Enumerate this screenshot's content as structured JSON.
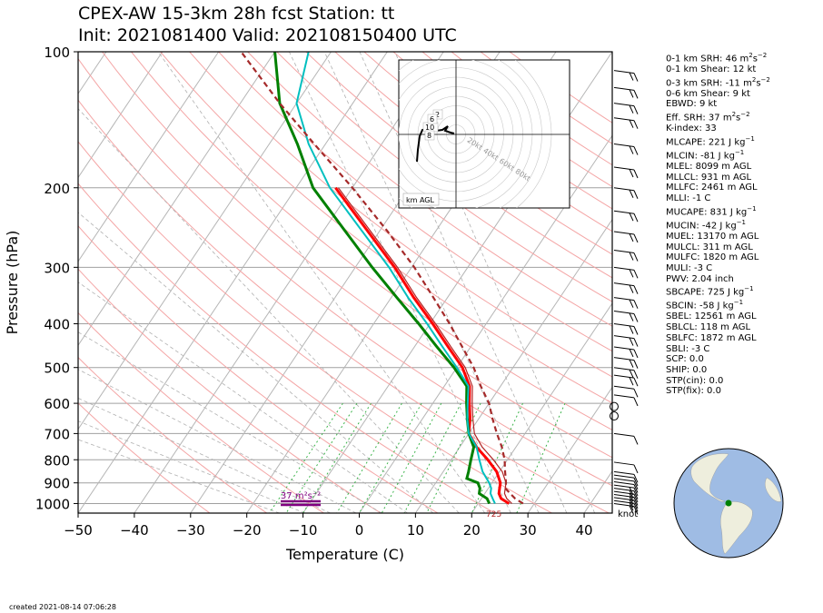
{
  "title_line1": "CPEX-AW 15-3km  28h fcst  Station: tt",
  "title_line2": "Init: 2021081400  Valid: 202108150400 UTC",
  "footer": "created 2021-08-14 07:06:28",
  "indices": [
    {
      "label": "0-1 km SRH: 46 m",
      "sup1": "2",
      "mid": "s",
      "sup2": "−2"
    },
    {
      "label": "0-1 km Shear: 12 kt"
    },
    {
      "label": "0-3 km SRH: -11 m",
      "sup1": "2",
      "mid": "s",
      "sup2": "−2"
    },
    {
      "label": "0-6 km Shear: 9 kt"
    },
    {
      "label": "EBWD: 9 kt"
    },
    {
      "label": "Eff. SRH: 37 m",
      "sup1": "2",
      "mid": "s",
      "sup2": "−2"
    },
    {
      "label": "K-index: 33"
    },
    {
      "label": "MLCAPE: 221 J kg",
      "sup1": "−1"
    },
    {
      "label": "MLCIN: -81 J kg",
      "sup1": "−1"
    },
    {
      "label": "MLEL: 8099 m AGL"
    },
    {
      "label": "MLLCL: 931 m AGL"
    },
    {
      "label": "MLLFC: 2461 m AGL"
    },
    {
      "label": "MLLI: -1 C"
    },
    {
      "label": "MUCAPE: 831 J kg",
      "sup1": "−1"
    },
    {
      "label": "MUCIN: -42 J kg",
      "sup1": "−1"
    },
    {
      "label": "MUEL: 13170 m AGL"
    },
    {
      "label": "MULCL: 311 m AGL"
    },
    {
      "label": "MULFC: 1820 m AGL"
    },
    {
      "label": "MULI: -3 C"
    },
    {
      "label": "PWV: 2.04 inch"
    },
    {
      "label": "SBCAPE: 725 J kg",
      "sup1": "−1"
    },
    {
      "label": "SBCIN: -58 J kg",
      "sup1": "−1"
    },
    {
      "label": "SBEL: 12561 m AGL"
    },
    {
      "label": "SBLCL: 118 m AGL"
    },
    {
      "label": "SBLFC: 1872 m AGL"
    },
    {
      "label": "SBLI: -3 C"
    },
    {
      "label": "SCP: 0.0"
    },
    {
      "label": "SHIP: 0.0"
    },
    {
      "label": "STP(cin): 0.0"
    },
    {
      "label": "STP(fix): 0.0"
    }
  ],
  "colors": {
    "temperature": "#ff0000",
    "dewpoint": "#008000",
    "wetbulb": "#00bfbf",
    "virtual_temperature": "#b22222",
    "parcel": "#a52a2a",
    "hodograph_label": "#800080",
    "grid": "#808080",
    "dry_adiabat": "#f4a5a5",
    "moist_adiabat": "#b0b0b0",
    "mixing_ratio": "#3cb44b",
    "ocean": "#9fbce4",
    "land": "#eeeedd"
  },
  "chart_data": {
    "type": "line",
    "subtype": "skew-T log-P",
    "xlabel": "Temperature (C)",
    "ylabel": "Pressure (hPa)",
    "x_ticks": [
      -50,
      -40,
      -30,
      -20,
      -10,
      0,
      10,
      20,
      30,
      40
    ],
    "y_ticks": [
      100,
      200,
      300,
      400,
      500,
      600,
      700,
      800,
      900,
      1000
    ],
    "xlim": [
      -50,
      45
    ],
    "ylim": [
      1050,
      100
    ],
    "y_scale": "log",
    "grid": true,
    "series": [
      {
        "key": "temperature",
        "points": [
          [
            1000,
            25.5
          ],
          [
            975,
            23.5
          ],
          [
            950,
            22.5
          ],
          [
            925,
            22
          ],
          [
            900,
            21.5
          ],
          [
            850,
            19.5
          ],
          [
            800,
            16.5
          ],
          [
            750,
            13
          ],
          [
            700,
            10
          ],
          [
            650,
            8.5
          ],
          [
            600,
            6.5
          ],
          [
            550,
            4.5
          ],
          [
            500,
            1
          ],
          [
            450,
            -4
          ],
          [
            400,
            -9.5
          ],
          [
            350,
            -16
          ],
          [
            300,
            -23
          ],
          [
            250,
            -32
          ],
          [
            200,
            -43
          ]
        ]
      },
      {
        "key": "virtual_temperature",
        "points": [
          [
            1000,
            26
          ],
          [
            975,
            24.5
          ],
          [
            950,
            23.5
          ],
          [
            925,
            23
          ],
          [
            900,
            22.5
          ],
          [
            850,
            20.5
          ],
          [
            800,
            17.5
          ],
          [
            750,
            14
          ],
          [
            700,
            11
          ],
          [
            650,
            9
          ],
          [
            600,
            7
          ],
          [
            550,
            5
          ],
          [
            500,
            1.5
          ],
          [
            450,
            -3.5
          ],
          [
            400,
            -9
          ],
          [
            350,
            -15.5
          ],
          [
            300,
            -22.5
          ],
          [
            250,
            -31.5
          ],
          [
            200,
            -42.5
          ]
        ]
      },
      {
        "key": "dewpoint",
        "points": [
          [
            1000,
            22
          ],
          [
            975,
            21
          ],
          [
            950,
            19
          ],
          [
            925,
            18.5
          ],
          [
            900,
            17.5
          ],
          [
            880,
            15
          ],
          [
            850,
            14.5
          ],
          [
            800,
            13.5
          ],
          [
            750,
            12.5
          ],
          [
            700,
            10
          ],
          [
            650,
            8
          ],
          [
            600,
            6
          ],
          [
            550,
            4
          ],
          [
            500,
            -0.5
          ],
          [
            450,
            -6
          ],
          [
            400,
            -12
          ],
          [
            350,
            -19
          ],
          [
            300,
            -27
          ],
          [
            250,
            -36
          ],
          [
            200,
            -47
          ],
          [
            160,
            -55
          ],
          [
            130,
            -63
          ],
          [
            100,
            -70
          ]
        ]
      },
      {
        "key": "wetbulb",
        "points": [
          [
            1000,
            23
          ],
          [
            975,
            22
          ],
          [
            950,
            21
          ],
          [
            925,
            20.5
          ],
          [
            900,
            19.5
          ],
          [
            850,
            17
          ],
          [
            800,
            15
          ],
          [
            750,
            13
          ],
          [
            700,
            10
          ],
          [
            650,
            8
          ],
          [
            600,
            6.2
          ],
          [
            550,
            4.3
          ],
          [
            500,
            0
          ],
          [
            450,
            -5
          ],
          [
            400,
            -10.5
          ],
          [
            350,
            -17
          ],
          [
            300,
            -24
          ],
          [
            250,
            -33
          ],
          [
            200,
            -44
          ],
          [
            160,
            -53
          ],
          [
            130,
            -60
          ],
          [
            100,
            -64
          ]
        ]
      },
      {
        "key": "parcel",
        "points": [
          [
            1000,
            28
          ],
          [
            975,
            26
          ],
          [
            950,
            24.5
          ],
          [
            925,
            23
          ],
          [
            900,
            22.5
          ],
          [
            850,
            21
          ],
          [
            800,
            19.5
          ],
          [
            750,
            17.5
          ],
          [
            700,
            15
          ],
          [
            650,
            12.5
          ],
          [
            600,
            10
          ],
          [
            550,
            6.5
          ],
          [
            500,
            3
          ],
          [
            450,
            -1.5
          ],
          [
            400,
            -6.5
          ],
          [
            350,
            -12.5
          ],
          [
            300,
            -19.5
          ],
          [
            250,
            -28.5
          ],
          [
            200,
            -40
          ],
          [
            160,
            -52
          ],
          [
            130,
            -63
          ],
          [
            100,
            -76
          ]
        ]
      }
    ],
    "annotations": [
      "37 m²s⁻²",
      "725",
      "knot"
    ],
    "hodograph": {
      "rings_kt": [
        20,
        40,
        60,
        80
      ],
      "ring_labels": [
        "20kt",
        "40kt",
        "60kt",
        "80kt"
      ],
      "level_labels": [
        "2",
        "10",
        "8",
        "6"
      ],
      "legend": "km AGL"
    }
  }
}
